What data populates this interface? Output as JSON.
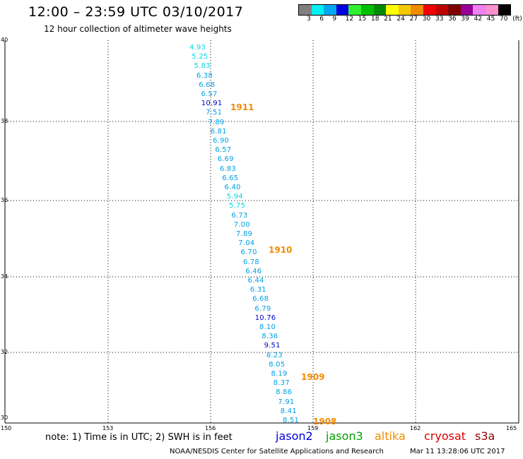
{
  "header": {
    "title": "12:00 – 23:59 UTC 03/10/2017",
    "subtitle": "12 hour collection of altimeter wave heights"
  },
  "legend": {
    "colors": [
      "#808080",
      "#00f2f2",
      "#00a8f0",
      "#0000e0",
      "#30f030",
      "#00c000",
      "#008c00",
      "#ffff00",
      "#f5c800",
      "#f08c00",
      "#f00000",
      "#c00000",
      "#800000",
      "#990099",
      "#ee82ee",
      "#ff90d0",
      "#000000"
    ],
    "labels": [
      "3",
      "6",
      "9",
      "12",
      "15",
      "18",
      "21",
      "24",
      "27",
      "30",
      "33",
      "36",
      "39",
      "42",
      "45",
      "70",
      "(ft)"
    ]
  },
  "axes": {
    "x_ticks": [
      "150",
      "153",
      "156",
      "159",
      "162",
      "165"
    ],
    "y_ticks": [
      "40",
      "38",
      "36",
      "34",
      "32",
      "30"
    ]
  },
  "observations": [
    {
      "value": "4.93",
      "color": "#00d8e8"
    },
    {
      "value": "5.25",
      "color": "#00d8e8"
    },
    {
      "value": "5.83",
      "color": "#00d8e8"
    },
    {
      "value": "6.38",
      "color": "#00a0e8"
    },
    {
      "value": "6.68",
      "color": "#00a0e8"
    },
    {
      "value": "6.57",
      "color": "#00a0e8"
    },
    {
      "value": "10.91",
      "color": "#0000c8"
    },
    {
      "value": "7.51",
      "color": "#00a0e8"
    },
    {
      "value": "7.89",
      "color": "#00a0e8"
    },
    {
      "value": "6.81",
      "color": "#00a0e8"
    },
    {
      "value": "6.90",
      "color": "#00a0e8"
    },
    {
      "value": "6.57",
      "color": "#00a0e8"
    },
    {
      "value": "6.69",
      "color": "#00a0e8"
    },
    {
      "value": "6.83",
      "color": "#00a0e8"
    },
    {
      "value": "6.65",
      "color": "#00a0e8"
    },
    {
      "value": "6.40",
      "color": "#00a0e8"
    },
    {
      "value": "5.94",
      "color": "#00d8e8"
    },
    {
      "value": "5.75",
      "color": "#00d8e8"
    },
    {
      "value": "6.73",
      "color": "#00a0e8"
    },
    {
      "value": "7.00",
      "color": "#00a0e8"
    },
    {
      "value": "7.89",
      "color": "#00a0e8"
    },
    {
      "value": "7.04",
      "color": "#00a0e8"
    },
    {
      "value": "6.70",
      "color": "#00a0e8"
    },
    {
      "value": "6.78",
      "color": "#00a0e8"
    },
    {
      "value": "6.46",
      "color": "#00a0e8"
    },
    {
      "value": "6.44",
      "color": "#00a0e8"
    },
    {
      "value": "6.31",
      "color": "#00a0e8"
    },
    {
      "value": "6.68",
      "color": "#00a0e8"
    },
    {
      "value": "6.79",
      "color": "#00a0e8"
    },
    {
      "value": "10.76",
      "color": "#0000c8"
    },
    {
      "value": "8.10",
      "color": "#00a0e8"
    },
    {
      "value": "8.36",
      "color": "#00a0e8"
    },
    {
      "value": "9.51",
      "color": "#0000c8"
    },
    {
      "value": "8.23",
      "color": "#00a0e8"
    },
    {
      "value": "8.05",
      "color": "#00a0e8"
    },
    {
      "value": "8.19",
      "color": "#00a0e8"
    },
    {
      "value": "8.37",
      "color": "#00a0e8"
    },
    {
      "value": "8.86",
      "color": "#00a0e8"
    },
    {
      "value": "7.91",
      "color": "#00a0e8"
    },
    {
      "value": "8.41",
      "color": "#00a0e8"
    },
    {
      "value": "8.51",
      "color": "#00a0e8"
    }
  ],
  "time_labels": [
    "1911",
    "1910",
    "1909",
    "1908"
  ],
  "footer": {
    "note": "note:  1) Time is in UTC;  2) SWH is in feet",
    "satellites": [
      {
        "name": "jason2",
        "color": "#0000e0"
      },
      {
        "name": "jason3",
        "color": "#00a000"
      },
      {
        "name": "altika",
        "color": "#f08c00"
      },
      {
        "name": "cryosat",
        "color": "#e00000"
      },
      {
        "name": "s3a",
        "color": "#990000"
      }
    ],
    "credit": "NOAA/NESDIS Center for Satellite Applications and Research",
    "timestamp": "Mar 11 13:28:06 UTC 2017"
  }
}
